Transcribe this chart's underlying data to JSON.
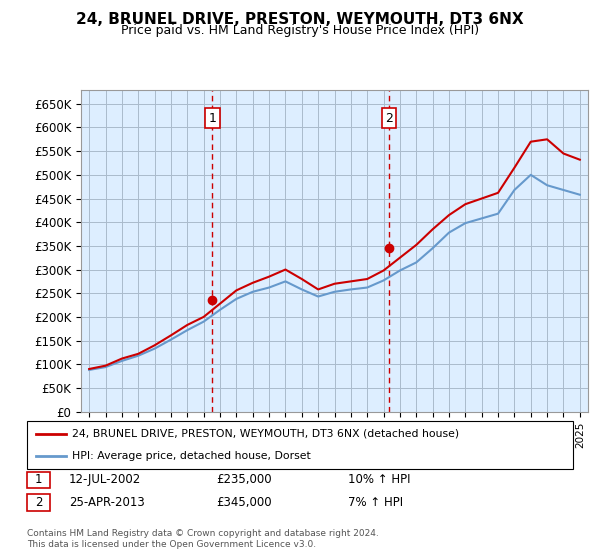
{
  "title": "24, BRUNEL DRIVE, PRESTON, WEYMOUTH, DT3 6NX",
  "subtitle": "Price paid vs. HM Land Registry's House Price Index (HPI)",
  "years": [
    1995,
    1996,
    1997,
    1998,
    1999,
    2000,
    2001,
    2002,
    2003,
    2004,
    2005,
    2006,
    2007,
    2008,
    2009,
    2010,
    2011,
    2012,
    2013,
    2014,
    2015,
    2016,
    2017,
    2018,
    2019,
    2020,
    2021,
    2022,
    2023,
    2024,
    2025
  ],
  "hpi_values": [
    88000,
    94000,
    107000,
    118000,
    133000,
    152000,
    172000,
    190000,
    215000,
    238000,
    253000,
    262000,
    275000,
    258000,
    243000,
    253000,
    258000,
    262000,
    277000,
    298000,
    315000,
    345000,
    378000,
    398000,
    408000,
    418000,
    468000,
    500000,
    478000,
    468000,
    458000
  ],
  "house_values": [
    90000,
    97000,
    112000,
    122000,
    140000,
    161000,
    183000,
    200000,
    228000,
    256000,
    272000,
    285000,
    300000,
    280000,
    258000,
    270000,
    275000,
    280000,
    298000,
    325000,
    352000,
    385000,
    415000,
    438000,
    450000,
    462000,
    515000,
    570000,
    575000,
    545000,
    532000
  ],
  "sale1_year": 2002.54,
  "sale1_price": 235000,
  "sale2_year": 2013.32,
  "sale2_price": 345000,
  "sale1_label": "1",
  "sale2_label": "2",
  "sale1_date": "12-JUL-2002",
  "sale1_amount": "£235,000",
  "sale1_hpi": "10% ↑ HPI",
  "sale2_date": "25-APR-2013",
  "sale2_amount": "£345,000",
  "sale2_hpi": "7% ↑ HPI",
  "legend_house": "24, BRUNEL DRIVE, PRESTON, WEYMOUTH, DT3 6NX (detached house)",
  "legend_hpi": "HPI: Average price, detached house, Dorset",
  "footer": "Contains HM Land Registry data © Crown copyright and database right 2024.\nThis data is licensed under the Open Government Licence v3.0.",
  "house_color": "#cc0000",
  "hpi_color": "#6699cc",
  "bg_color": "#ddeeff",
  "grid_color": "#aabbcc",
  "ylim": [
    0,
    680000
  ],
  "yticks": [
    0,
    50000,
    100000,
    150000,
    200000,
    250000,
    300000,
    350000,
    400000,
    450000,
    500000,
    550000,
    600000,
    650000
  ],
  "fig_width": 6.0,
  "fig_height": 5.6
}
